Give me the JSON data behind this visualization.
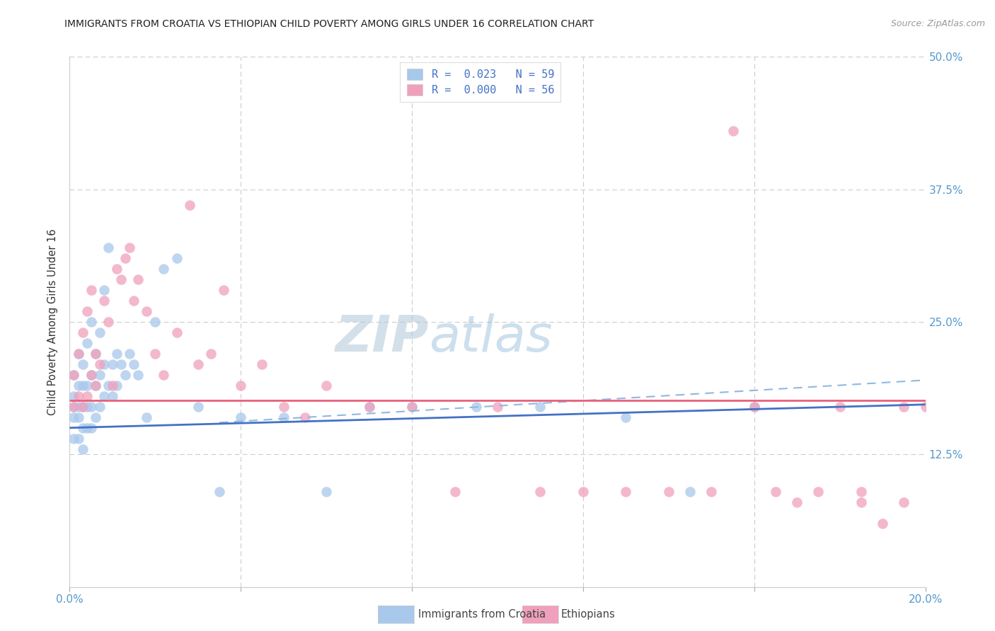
{
  "title": "IMMIGRANTS FROM CROATIA VS ETHIOPIAN CHILD POVERTY AMONG GIRLS UNDER 16 CORRELATION CHART",
  "source": "Source: ZipAtlas.com",
  "ylabel": "Child Poverty Among Girls Under 16",
  "x_min": 0.0,
  "x_max": 0.2,
  "y_min": 0.0,
  "y_max": 0.5,
  "x_ticks": [
    0.0,
    0.04,
    0.08,
    0.12,
    0.16,
    0.2
  ],
  "y_ticks": [
    0.0,
    0.125,
    0.25,
    0.375,
    0.5
  ],
  "color_blue": "#A8C8EC",
  "color_pink": "#F0A0BC",
  "line_blue": "#4472C4",
  "line_pink": "#E8607A",
  "line_dashed_color": "#90B8E0",
  "watermark_color": "#C8DCF0",
  "tick_color": "#5599CC",
  "croatia_x": [
    0.001,
    0.001,
    0.001,
    0.001,
    0.001,
    0.002,
    0.002,
    0.002,
    0.002,
    0.002,
    0.003,
    0.003,
    0.003,
    0.003,
    0.003,
    0.004,
    0.004,
    0.004,
    0.004,
    0.005,
    0.005,
    0.005,
    0.005,
    0.006,
    0.006,
    0.006,
    0.007,
    0.007,
    0.007,
    0.008,
    0.008,
    0.008,
    0.009,
    0.009,
    0.01,
    0.01,
    0.011,
    0.011,
    0.012,
    0.013,
    0.014,
    0.015,
    0.016,
    0.018,
    0.02,
    0.022,
    0.025,
    0.03,
    0.035,
    0.04,
    0.05,
    0.06,
    0.07,
    0.08,
    0.095,
    0.11,
    0.13,
    0.145,
    0.16
  ],
  "croatia_y": [
    0.14,
    0.16,
    0.17,
    0.18,
    0.2,
    0.14,
    0.16,
    0.17,
    0.19,
    0.22,
    0.13,
    0.15,
    0.17,
    0.19,
    0.21,
    0.15,
    0.17,
    0.19,
    0.23,
    0.15,
    0.17,
    0.2,
    0.25,
    0.16,
    0.19,
    0.22,
    0.17,
    0.2,
    0.24,
    0.18,
    0.21,
    0.28,
    0.19,
    0.32,
    0.18,
    0.21,
    0.19,
    0.22,
    0.21,
    0.2,
    0.22,
    0.21,
    0.2,
    0.16,
    0.25,
    0.3,
    0.31,
    0.17,
    0.09,
    0.16,
    0.16,
    0.09,
    0.17,
    0.17,
    0.17,
    0.17,
    0.16,
    0.09,
    0.17
  ],
  "ethiopian_x": [
    0.001,
    0.001,
    0.002,
    0.002,
    0.003,
    0.003,
    0.004,
    0.004,
    0.005,
    0.005,
    0.006,
    0.006,
    0.007,
    0.008,
    0.009,
    0.01,
    0.011,
    0.012,
    0.013,
    0.014,
    0.015,
    0.016,
    0.018,
    0.02,
    0.022,
    0.025,
    0.028,
    0.03,
    0.033,
    0.036,
    0.04,
    0.045,
    0.05,
    0.055,
    0.06,
    0.07,
    0.08,
    0.09,
    0.1,
    0.11,
    0.12,
    0.13,
    0.14,
    0.15,
    0.155,
    0.16,
    0.165,
    0.17,
    0.175,
    0.18,
    0.185,
    0.19,
    0.195,
    0.2,
    0.185,
    0.195
  ],
  "ethiopian_y": [
    0.17,
    0.2,
    0.18,
    0.22,
    0.17,
    0.24,
    0.18,
    0.26,
    0.2,
    0.28,
    0.22,
    0.19,
    0.21,
    0.27,
    0.25,
    0.19,
    0.3,
    0.29,
    0.31,
    0.32,
    0.27,
    0.29,
    0.26,
    0.22,
    0.2,
    0.24,
    0.36,
    0.21,
    0.22,
    0.28,
    0.19,
    0.21,
    0.17,
    0.16,
    0.19,
    0.17,
    0.17,
    0.09,
    0.17,
    0.09,
    0.09,
    0.09,
    0.09,
    0.09,
    0.43,
    0.17,
    0.09,
    0.08,
    0.09,
    0.17,
    0.08,
    0.06,
    0.17,
    0.17,
    0.09,
    0.08
  ],
  "blue_trendline_x": [
    0.0,
    0.2
  ],
  "blue_trendline_y": [
    0.15,
    0.172
  ],
  "pink_trendline_x": [
    0.0,
    0.2
  ],
  "pink_trendline_y": [
    0.176,
    0.176
  ],
  "dashed_line_x": [
    0.035,
    0.2
  ],
  "dashed_line_y": [
    0.155,
    0.195
  ]
}
